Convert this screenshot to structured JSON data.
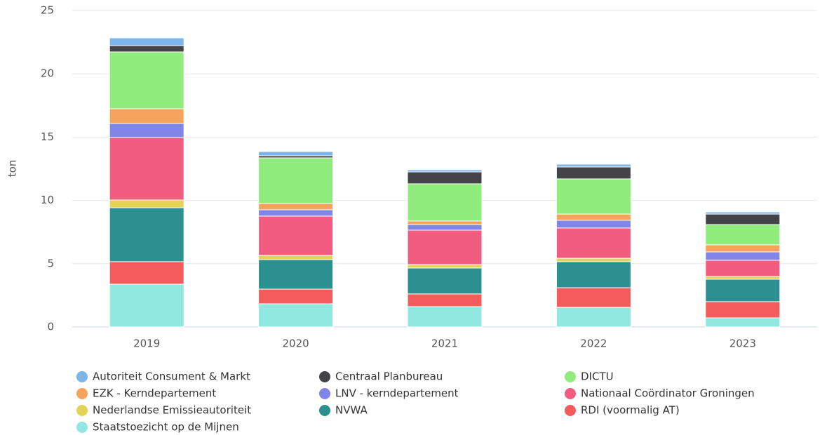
{
  "chart_data": {
    "type": "stacked_bar",
    "y_label": "ton",
    "categories": [
      "2019",
      "2020",
      "2021",
      "2022",
      "2023"
    ],
    "ylim": [
      0,
      25
    ],
    "yticks": [
      0,
      5,
      10,
      15,
      20,
      25
    ],
    "grid": true,
    "series": [
      {
        "name": "Autoriteit Consument & Markt",
        "color": "#7cb5ec",
        "values": [
          0.61,
          0.33,
          0.17,
          0.22,
          0.17
        ]
      },
      {
        "name": "Centraal Planbureau",
        "color": "#434348",
        "values": [
          0.5,
          0.17,
          0.94,
          0.94,
          0.83
        ]
      },
      {
        "name": "DICTU",
        "color": "#90ed7d",
        "values": [
          4.49,
          3.6,
          2.94,
          2.78,
          1.6
        ]
      },
      {
        "name": "EZK - Kerndepartement",
        "color": "#f7a35c",
        "values": [
          1.16,
          0.5,
          0.28,
          0.49,
          0.56
        ]
      },
      {
        "name": "LNV - kerndepartement",
        "color": "#8085e9",
        "values": [
          1.11,
          0.5,
          0.44,
          0.61,
          0.66
        ]
      },
      {
        "name": "Nationaal Coördinator Groningen",
        "color": "#f15c80",
        "values": [
          4.94,
          3.11,
          2.72,
          2.39,
          1.28
        ]
      },
      {
        "name": "Nederlandse Emissieautoriteit",
        "color": "#e4d354",
        "values": [
          0.61,
          0.33,
          0.27,
          0.27,
          0.22
        ]
      },
      {
        "name": "NVWA",
        "color": "#2b908f",
        "values": [
          4.26,
          2.33,
          2.05,
          2.06,
          1.77
        ]
      },
      {
        "name": "RDI (voormalig AT)",
        "color": "#f45b5b",
        "values": [
          1.78,
          1.16,
          1.0,
          1.55,
          1.28
        ]
      },
      {
        "name": "Staatstoezicht op de Mijnen",
        "color": "#91e8e1",
        "values": [
          3.38,
          1.83,
          1.61,
          1.55,
          0.72
        ]
      }
    ]
  }
}
